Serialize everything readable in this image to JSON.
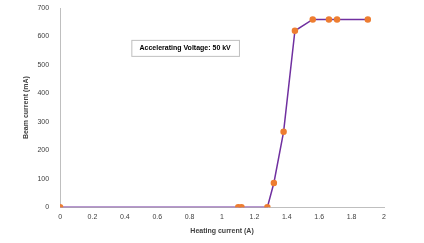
{
  "chart_data": {
    "type": "line",
    "annotation": "Accelerating Voltage: 50 kV",
    "x_label": "Heating current (A)",
    "y_label": "Beam current (mA)",
    "x": [
      0,
      1.1,
      1.12,
      1.28,
      1.32,
      1.38,
      1.45,
      1.56,
      1.66,
      1.71,
      1.9
    ],
    "series": [
      {
        "color": "#7030a0",
        "marker": "circle",
        "values": [
          0,
          0,
          0,
          0,
          85,
          265,
          620,
          660,
          660,
          660,
          660
        ]
      }
    ],
    "xlim": [
      0,
      2
    ],
    "xticks": [
      0,
      0.2,
      0.4,
      0.6,
      0.8,
      1,
      1.2,
      1.4,
      1.6,
      1.8,
      2
    ],
    "ylim": [
      0,
      700
    ],
    "yticks": [
      0,
      100,
      200,
      300,
      400,
      500,
      600,
      700
    ],
    "grid": false
  }
}
